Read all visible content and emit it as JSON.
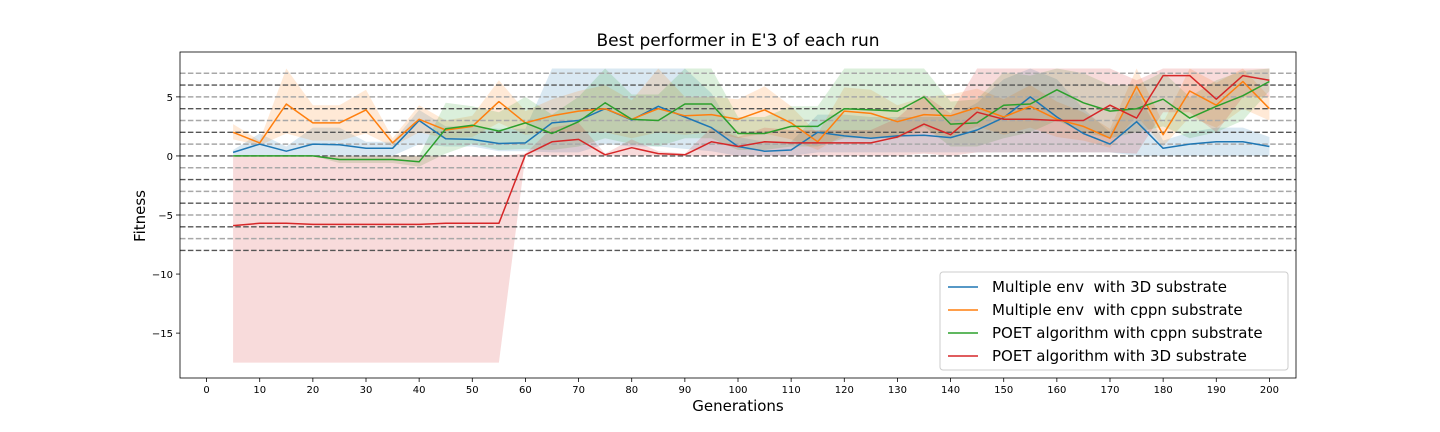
{
  "chart_data": {
    "type": "line",
    "title": "Best performer in E'3 of each run",
    "xlabel": "Generations",
    "ylabel": "Fitness",
    "xlim": [
      -5,
      205
    ],
    "ylim": [
      -18.8,
      8.8
    ],
    "xticks": [
      0,
      10,
      20,
      30,
      40,
      50,
      60,
      70,
      80,
      90,
      100,
      110,
      120,
      130,
      140,
      150,
      160,
      170,
      180,
      190,
      200
    ],
    "yticks": [
      -15,
      -10,
      -5,
      0,
      5
    ],
    "ytick_labels": [
      "−15",
      "−10",
      "−5",
      "0",
      "5"
    ],
    "reference_lines": [
      {
        "y": 7,
        "style": "light-dashed"
      },
      {
        "y": 6,
        "style": "dark-dashed"
      },
      {
        "y": 5,
        "style": "light-dashed"
      },
      {
        "y": 4,
        "style": "dark-dashed"
      },
      {
        "y": 3,
        "style": "light-dashed"
      },
      {
        "y": 2,
        "style": "dark-dashed"
      },
      {
        "y": 1,
        "style": "light-dashed"
      },
      {
        "y": 0,
        "style": "dark-dashed"
      },
      {
        "y": -1,
        "style": "light-dashed"
      },
      {
        "y": -2,
        "style": "dark-dashed"
      },
      {
        "y": -3,
        "style": "light-dashed"
      },
      {
        "y": -4,
        "style": "dark-dashed"
      },
      {
        "y": -5,
        "style": "light-dashed"
      },
      {
        "y": -6,
        "style": "dark-dashed"
      },
      {
        "y": -7,
        "style": "light-dashed"
      },
      {
        "y": -8,
        "style": "dark-dashed"
      }
    ],
    "x": [
      5,
      10,
      15,
      20,
      25,
      30,
      35,
      40,
      45,
      50,
      55,
      60,
      65,
      70,
      75,
      80,
      85,
      90,
      95,
      100,
      105,
      110,
      115,
      120,
      125,
      130,
      135,
      140,
      145,
      150,
      155,
      160,
      165,
      170,
      175,
      180,
      185,
      190,
      195,
      200
    ],
    "legend_position": "lower-right",
    "grid": false,
    "series": [
      {
        "name": "Multiple env  with 3D substrate",
        "color": "#1f77b4",
        "values": [
          0.3,
          1.0,
          0.4,
          1.0,
          0.95,
          0.65,
          0.65,
          3.0,
          1.45,
          1.4,
          1.05,
          1.1,
          2.8,
          3.0,
          4.0,
          3.05,
          4.2,
          3.3,
          2.4,
          0.8,
          0.4,
          0.5,
          2.0,
          1.7,
          1.5,
          1.7,
          1.75,
          1.55,
          2.2,
          3.25,
          5.0,
          3.3,
          1.9,
          1.0,
          2.9,
          0.65,
          1.0,
          1.2,
          1.2,
          0.8
        ],
        "band_low": [
          0.1,
          0.0,
          -0.05,
          0.0,
          0.0,
          0.0,
          0.0,
          1.0,
          0.8,
          0.8,
          0.4,
          0.4,
          0.3,
          0.3,
          1.0,
          0.8,
          0.8,
          0.6,
          0.4,
          0.0,
          0.0,
          0.0,
          0.3,
          0.3,
          0.3,
          0.3,
          0.3,
          0.3,
          0.3,
          0.3,
          0.3,
          0.3,
          0.3,
          0.3,
          0.0,
          0.0,
          0.0,
          0.0,
          0.0,
          0.0
        ],
        "band_high": [
          0.5,
          1.9,
          0.8,
          2.4,
          2.4,
          1.2,
          1.2,
          3.9,
          2.5,
          2.5,
          2.3,
          2.3,
          7.4,
          7.4,
          7.4,
          7.4,
          7.4,
          7.4,
          5.3,
          1.6,
          1.2,
          1.2,
          3.5,
          3.5,
          3.3,
          3.3,
          3.3,
          3.3,
          4.5,
          6.5,
          7.4,
          6.5,
          4.0,
          2.0,
          5.5,
          1.3,
          2.0,
          2.4,
          2.4,
          1.6
        ]
      },
      {
        "name": "Multiple env  with cppn substrate",
        "color": "#ff7f0e",
        "values": [
          2.0,
          1.1,
          4.4,
          2.8,
          2.8,
          3.9,
          1.1,
          3.1,
          2.2,
          2.5,
          4.6,
          2.8,
          3.4,
          3.8,
          4.0,
          3.1,
          4.0,
          3.4,
          3.5,
          3.1,
          3.9,
          2.8,
          1.2,
          3.8,
          3.6,
          2.9,
          3.5,
          3.4,
          4.1,
          3.3,
          4.2,
          3.1,
          2.5,
          1.5,
          5.9,
          1.8,
          5.5,
          4.3,
          6.3,
          4.0
        ],
        "band_low": [
          1.4,
          0.9,
          1.9,
          1.3,
          1.3,
          1.9,
          0.8,
          2.0,
          1.5,
          1.6,
          2.8,
          1.8,
          2.0,
          2.0,
          2.0,
          1.5,
          2.0,
          1.8,
          2.0,
          1.5,
          1.9,
          1.4,
          0.5,
          1.8,
          1.6,
          1.5,
          2.0,
          1.6,
          2.5,
          1.8,
          2.4,
          1.6,
          1.3,
          0.7,
          3.4,
          0.8,
          3.3,
          2.4,
          4.0,
          3.0
        ],
        "band_high": [
          2.7,
          1.3,
          7.4,
          4.3,
          4.3,
          5.6,
          1.5,
          4.3,
          3.0,
          3.4,
          6.4,
          3.8,
          4.8,
          5.5,
          6.0,
          4.7,
          7.4,
          5.0,
          5.0,
          4.8,
          5.9,
          4.2,
          1.9,
          5.8,
          5.6,
          4.3,
          5.0,
          5.2,
          5.7,
          4.8,
          6.0,
          4.6,
          3.7,
          2.3,
          7.4,
          2.8,
          7.4,
          6.2,
          7.4,
          5.0
        ]
      },
      {
        "name": "POET algorithm with cppn substrate",
        "color": "#2ca02c",
        "values": [
          0.0,
          0.0,
          0.0,
          0.0,
          -0.3,
          -0.3,
          -0.3,
          -0.5,
          2.3,
          2.6,
          2.1,
          2.8,
          1.9,
          2.9,
          4.5,
          3.1,
          3.0,
          4.4,
          4.4,
          1.9,
          1.9,
          2.5,
          2.5,
          4.0,
          3.9,
          3.8,
          5.0,
          2.7,
          2.8,
          4.3,
          4.4,
          5.6,
          4.5,
          3.8,
          4.0,
          4.8,
          3.2,
          4.2,
          5.1,
          6.3
        ],
        "band_low": [
          0.0,
          0.0,
          0.0,
          0.0,
          -0.6,
          -0.6,
          -0.6,
          -0.9,
          0.2,
          1.0,
          0.5,
          0.6,
          0.5,
          0.8,
          1.5,
          1.0,
          0.8,
          1.5,
          1.5,
          0.5,
          0.5,
          0.8,
          0.8,
          1.5,
          1.5,
          1.5,
          2.5,
          0.8,
          0.8,
          1.5,
          2.0,
          3.0,
          2.0,
          1.5,
          2.0,
          2.5,
          1.5,
          2.0,
          3.0,
          5.5
        ],
        "band_high": [
          0.0,
          0.0,
          0.0,
          0.0,
          0.0,
          0.0,
          0.0,
          0.0,
          4.5,
          4.2,
          3.7,
          5.0,
          3.5,
          5.0,
          7.4,
          5.2,
          5.2,
          7.4,
          7.4,
          3.3,
          3.3,
          4.2,
          4.2,
          7.4,
          7.4,
          7.4,
          7.4,
          4.6,
          4.8,
          7.1,
          6.8,
          7.4,
          7.0,
          6.0,
          6.0,
          7.1,
          5.0,
          6.4,
          7.2,
          7.4
        ]
      },
      {
        "name": "POET algorithm with 3D substrate",
        "color": "#d62728",
        "values": [
          -5.9,
          -5.7,
          -5.7,
          -5.8,
          -5.8,
          -5.8,
          -5.8,
          -5.8,
          -5.7,
          -5.7,
          -5.7,
          0.1,
          1.2,
          1.4,
          0.1,
          0.7,
          0.2,
          0.1,
          1.2,
          0.8,
          1.2,
          1.1,
          1.1,
          1.1,
          1.1,
          1.6,
          2.7,
          1.8,
          3.7,
          3.1,
          3.1,
          3.0,
          3.0,
          4.3,
          3.2,
          6.8,
          6.8,
          4.8,
          6.8,
          6.4
        ],
        "band_low": [
          -17.5,
          -17.5,
          -17.5,
          -17.5,
          -17.5,
          -17.5,
          -17.5,
          -17.5,
          -17.5,
          -17.5,
          -17.5,
          0.0,
          0.0,
          0.0,
          0.0,
          0.0,
          0.0,
          0.0,
          0.0,
          0.0,
          0.0,
          0.0,
          0.0,
          0.0,
          0.0,
          0.0,
          0.2,
          0.0,
          0.3,
          0.3,
          0.3,
          0.3,
          0.3,
          0.3,
          0.2,
          3.7,
          3.7,
          2.0,
          5.0,
          5.0
        ],
        "band_high": [
          0.0,
          0.0,
          0.0,
          0.0,
          0.0,
          0.0,
          0.0,
          0.0,
          0.0,
          0.0,
          0.0,
          0.2,
          2.4,
          2.8,
          0.2,
          1.4,
          0.4,
          0.2,
          2.4,
          1.6,
          2.4,
          2.2,
          2.2,
          2.2,
          2.2,
          3.2,
          5.2,
          3.6,
          7.4,
          7.4,
          7.4,
          7.4,
          7.4,
          7.4,
          6.4,
          7.4,
          7.4,
          7.4,
          7.4,
          7.4
        ]
      }
    ]
  }
}
